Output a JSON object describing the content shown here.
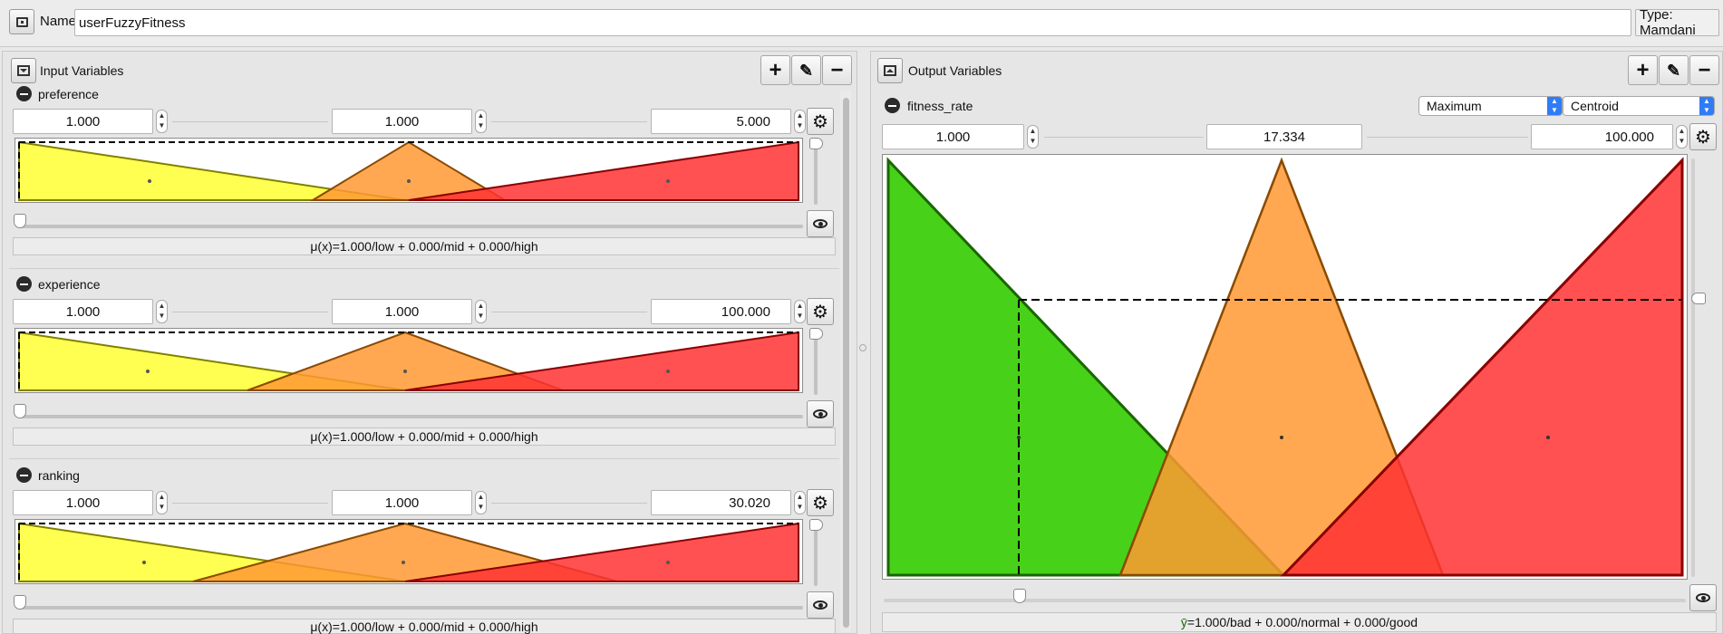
{
  "header": {
    "name_label": "Name",
    "name_value": "userFuzzyFitness",
    "type_label": "Type: Mamdani"
  },
  "inputs": {
    "title": "Input Variables",
    "variables": [
      {
        "name": "preference",
        "min": "1.000",
        "value": "1.000",
        "max": "5.000",
        "mu": "μ(x)=1.000/low + 0.000/mid + 0.000/high"
      },
      {
        "name": "experience",
        "min": "1.000",
        "value": "1.000",
        "max": "100.000",
        "mu": "μ(x)=1.000/low + 0.000/mid + 0.000/high"
      },
      {
        "name": "ranking",
        "min": "1.000",
        "value": "1.000",
        "max": "30.020",
        "mu": "μ(x)=1.000/low + 0.000/mid + 0.000/high"
      }
    ]
  },
  "outputs": {
    "title": "Output Variables",
    "variable": {
      "name": "fitness_rate",
      "accumulation": "Maximum",
      "defuzzifier": "Centroid",
      "min": "1.000",
      "value": "17.334",
      "max": "100.000",
      "result_symbol": "ȳ",
      "result_text": "=1.000/bad + 0.000/normal + 0.000/good"
    }
  },
  "colors": {
    "low": "#ffff33",
    "mid": "#ff9933",
    "high": "#ff3333",
    "bad": "#33cc00",
    "accent": "#2f7cf6"
  }
}
